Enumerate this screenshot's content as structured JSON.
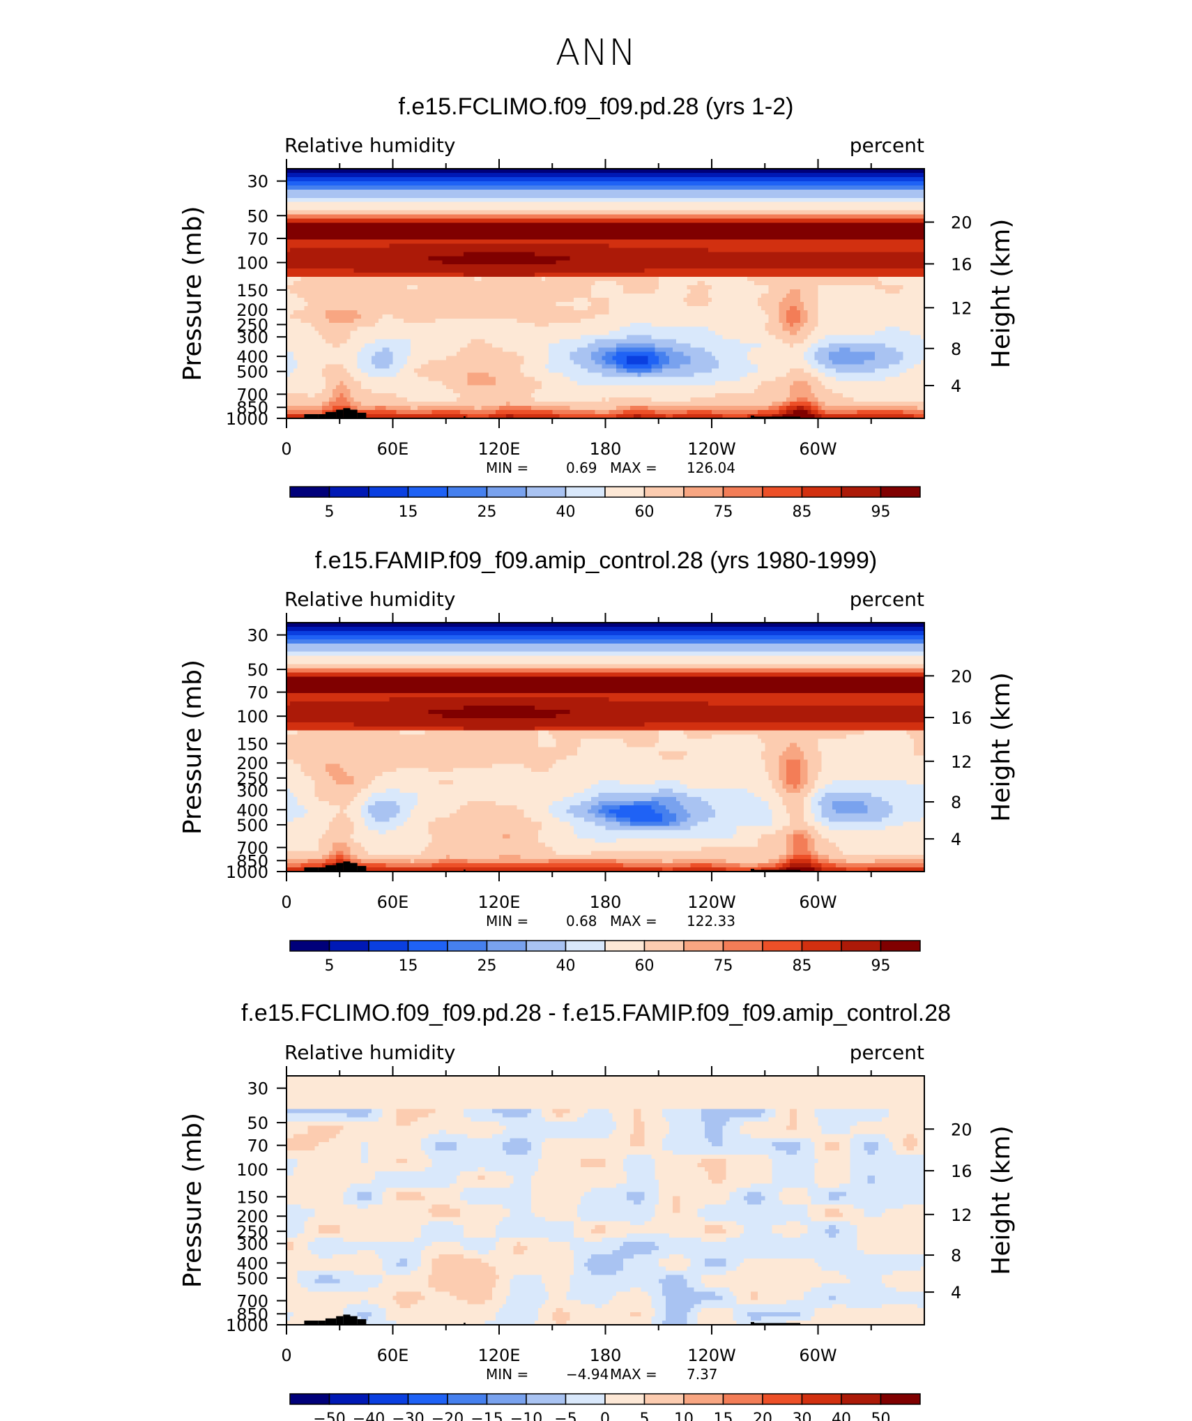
{
  "figure": {
    "title": "ANN"
  },
  "chart_data": [
    {
      "type": "heatmap",
      "title": "f.e15.FCLIMO.f09_f09.pd.28 (yrs 1-2)",
      "left_string": "Relative humidity",
      "right_string": "percent",
      "ylabel": "Pressure (mb)",
      "y2label": "Height (km)",
      "x_ticks": [
        "0",
        "60E",
        "120E",
        "180",
        "120W",
        "60W"
      ],
      "y_ticks": [
        "30",
        "50",
        "70",
        "100",
        "150",
        "200",
        "250",
        "300",
        "400",
        "500",
        "700",
        "850",
        "1000"
      ],
      "y2_ticks": [
        "20",
        "16",
        "12",
        "8",
        "4"
      ],
      "xlim": [
        0,
        360
      ],
      "ylim": [
        1000,
        30
      ],
      "stats": {
        "min_label": "MIN =",
        "min": "0.69",
        "max_label": "MAX =",
        "max": "126.04"
      },
      "levels": [
        "5",
        "15",
        "25",
        "40",
        "60",
        "75",
        "85",
        "95"
      ],
      "palette": [
        "#00007a",
        "#0019b5",
        "#0a3fe0",
        "#1f62f5",
        "#4680ee",
        "#79a2ee",
        "#a9c3f2",
        "#d9e8fb",
        "#fde8d6",
        "#fcccb0",
        "#f8a682",
        "#f37d57",
        "#ed5028",
        "#d23010",
        "#ac1a08",
        "#800000"
      ]
    },
    {
      "type": "heatmap",
      "title": "f.e15.FAMIP.f09_f09.amip_control.28 (yrs 1980-1999)",
      "left_string": "Relative humidity",
      "right_string": "percent",
      "ylabel": "Pressure (mb)",
      "y2label": "Height (km)",
      "x_ticks": [
        "0",
        "60E",
        "120E",
        "180",
        "120W",
        "60W"
      ],
      "y_ticks": [
        "30",
        "50",
        "70",
        "100",
        "150",
        "200",
        "250",
        "300",
        "400",
        "500",
        "700",
        "850",
        "1000"
      ],
      "y2_ticks": [
        "20",
        "16",
        "12",
        "8",
        "4"
      ],
      "xlim": [
        0,
        360
      ],
      "ylim": [
        1000,
        30
      ],
      "stats": {
        "min_label": "MIN =",
        "min": "0.68",
        "max_label": "MAX =",
        "max": "122.33"
      },
      "levels": [
        "5",
        "15",
        "25",
        "40",
        "60",
        "75",
        "85",
        "95"
      ],
      "palette": [
        "#00007a",
        "#0019b5",
        "#0a3fe0",
        "#1f62f5",
        "#4680ee",
        "#79a2ee",
        "#a9c3f2",
        "#d9e8fb",
        "#fde8d6",
        "#fcccb0",
        "#f8a682",
        "#f37d57",
        "#ed5028",
        "#d23010",
        "#ac1a08",
        "#800000"
      ]
    },
    {
      "type": "heatmap",
      "title": "f.e15.FCLIMO.f09_f09.pd.28 - f.e15.FAMIP.f09_f09.amip_control.28",
      "left_string": "Relative humidity",
      "right_string": "percent",
      "ylabel": "Pressure (mb)",
      "y2label": "Height (km)",
      "x_ticks": [
        "0",
        "60E",
        "120E",
        "180",
        "120W",
        "60W"
      ],
      "y_ticks": [
        "30",
        "50",
        "70",
        "100",
        "150",
        "200",
        "250",
        "300",
        "400",
        "500",
        "700",
        "850",
        "1000"
      ],
      "y2_ticks": [
        "20",
        "16",
        "12",
        "8",
        "4"
      ],
      "xlim": [
        0,
        360
      ],
      "ylim": [
        1000,
        30
      ],
      "stats": {
        "min_label": "MIN =",
        "min": "−4.94",
        "max_label": "MAX =",
        "max": "7.37"
      },
      "levels": [
        "−50",
        "−40",
        "−30",
        "−20",
        "−15",
        "−10",
        "−5",
        "0",
        "5",
        "10",
        "15",
        "20",
        "30",
        "40",
        "50"
      ],
      "palette": [
        "#00007a",
        "#0019b5",
        "#0a3fe0",
        "#1f62f5",
        "#4680ee",
        "#79a2ee",
        "#a9c3f2",
        "#d9e8fb",
        "#fde8d6",
        "#fcccb0",
        "#f8a682",
        "#f37d57",
        "#ed5028",
        "#d23010",
        "#ac1a08",
        "#800000"
      ]
    }
  ]
}
